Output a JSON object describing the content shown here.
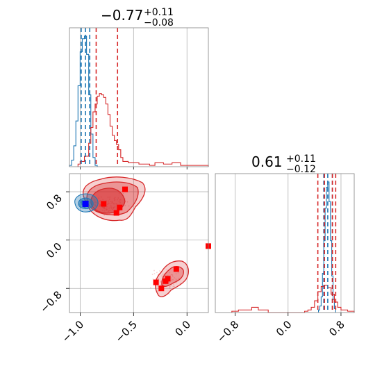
{
  "chart_data": [
    {
      "type": "histogram",
      "panel": "param1-marginal",
      "title": {
        "median": "−0.77",
        "plus": "+0.11",
        "minus": "−0.08"
      },
      "xlim": [
        -1.1,
        0.2
      ],
      "grid": true,
      "series": [
        {
          "name": "blue",
          "color": "#1f77b4",
          "quantiles": [
            -0.99,
            -0.95,
            -0.91
          ],
          "bins": [
            [
              -1.1,
              -1.08,
              0.01
            ],
            [
              -1.08,
              -1.06,
              0.05
            ],
            [
              -1.06,
              -1.04,
              0.16
            ],
            [
              -1.04,
              -1.02,
              0.35
            ],
            [
              -1.02,
              -1.0,
              0.62
            ],
            [
              -1.0,
              -0.98,
              0.88
            ],
            [
              -0.98,
              -0.96,
              0.98
            ],
            [
              -0.96,
              -0.94,
              1.0
            ],
            [
              -0.94,
              -0.92,
              0.86
            ],
            [
              -0.92,
              -0.9,
              0.55
            ],
            [
              -0.9,
              -0.88,
              0.25
            ],
            [
              -0.88,
              -0.86,
              0.07
            ],
            [
              -0.86,
              -0.84,
              0.01
            ]
          ]
        },
        {
          "name": "red",
          "color": "#d62728",
          "quantiles": [
            -0.85,
            -0.65
          ],
          "bins": [
            [
              -1.02,
              -1.0,
              0.02
            ],
            [
              -1.0,
              -0.96,
              0.04
            ],
            [
              -0.96,
              -0.92,
              0.08
            ],
            [
              -0.92,
              -0.9,
              0.18
            ],
            [
              -0.9,
              -0.88,
              0.3
            ],
            [
              -0.88,
              -0.86,
              0.42
            ],
            [
              -0.86,
              -0.84,
              0.48
            ],
            [
              -0.84,
              -0.82,
              0.54
            ],
            [
              -0.82,
              -0.8,
              0.56
            ],
            [
              -0.8,
              -0.78,
              0.55
            ],
            [
              -0.78,
              -0.76,
              0.53
            ],
            [
              -0.76,
              -0.74,
              0.48
            ],
            [
              -0.74,
              -0.72,
              0.4
            ],
            [
              -0.72,
              -0.7,
              0.31
            ],
            [
              -0.7,
              -0.68,
              0.24
            ],
            [
              -0.68,
              -0.66,
              0.2
            ],
            [
              -0.66,
              -0.64,
              0.17
            ],
            [
              -0.64,
              -0.62,
              0.13
            ],
            [
              -0.62,
              -0.6,
              0.07
            ],
            [
              -0.6,
              -0.55,
              0.04
            ],
            [
              -0.55,
              -0.45,
              0.03
            ],
            [
              -0.45,
              -0.35,
              0.02
            ],
            [
              -0.35,
              -0.3,
              0.01
            ],
            [
              -0.3,
              -0.22,
              0.03
            ],
            [
              -0.22,
              -0.14,
              0.02
            ],
            [
              -0.14,
              -0.06,
              0.03
            ],
            [
              -0.06,
              0.0,
              0.01
            ],
            [
              0.0,
              0.2,
              0.01
            ]
          ]
        }
      ]
    },
    {
      "type": "histogram",
      "panel": "param2-marginal",
      "title": {
        "median": "0.61",
        "plus": "+0.11",
        "minus": "−0.12"
      },
      "xlim": [
        -1.1,
        1.0
      ],
      "xticks": [
        -0.8,
        0.0,
        0.8
      ],
      "xticklabels": [
        "−0.8",
        "0.0",
        "0.8"
      ],
      "grid": true,
      "series": [
        {
          "name": "blue",
          "color": "#1f77b4",
          "quantiles": [
            0.54,
            0.6,
            0.67
          ],
          "bins": [
            [
              0.46,
              0.48,
              0.02
            ],
            [
              0.48,
              0.5,
              0.05
            ],
            [
              0.5,
              0.52,
              0.12
            ],
            [
              0.52,
              0.54,
              0.3
            ],
            [
              0.54,
              0.56,
              0.55
            ],
            [
              0.56,
              0.58,
              0.8
            ],
            [
              0.58,
              0.6,
              0.96
            ],
            [
              0.6,
              0.62,
              1.0
            ],
            [
              0.62,
              0.64,
              0.85
            ],
            [
              0.64,
              0.66,
              0.55
            ],
            [
              0.66,
              0.68,
              0.28
            ],
            [
              0.68,
              0.7,
              0.1
            ],
            [
              0.7,
              0.72,
              0.03
            ]
          ]
        },
        {
          "name": "red",
          "color": "#d62728",
          "quantiles": [
            0.45,
            0.55,
            0.67,
            0.72
          ],
          "bins": [
            [
              -0.85,
              -0.75,
              0.01
            ],
            [
              -0.75,
              -0.65,
              0.02
            ],
            [
              -0.65,
              -0.55,
              0.02
            ],
            [
              -0.55,
              -0.45,
              0.04
            ],
            [
              -0.45,
              -0.3,
              0.02
            ],
            [
              -0.3,
              0.25,
              0.0
            ],
            [
              0.25,
              0.3,
              0.01
            ],
            [
              0.3,
              0.35,
              0.02
            ],
            [
              0.35,
              0.4,
              0.04
            ],
            [
              0.4,
              0.45,
              0.09
            ],
            [
              0.45,
              0.5,
              0.16
            ],
            [
              0.5,
              0.55,
              0.2
            ],
            [
              0.55,
              0.6,
              0.21
            ],
            [
              0.6,
              0.65,
              0.19
            ],
            [
              0.65,
              0.7,
              0.14
            ],
            [
              0.7,
              0.75,
              0.08
            ],
            [
              0.75,
              0.8,
              0.04
            ],
            [
              0.8,
              0.9,
              0.02
            ],
            [
              0.9,
              1.0,
              0.01
            ]
          ]
        }
      ]
    },
    {
      "type": "scatter",
      "panel": "joint",
      "xlim": [
        -1.1,
        0.2
      ],
      "ylim": [
        -1.2,
        1.1
      ],
      "xticks": [
        -1.0,
        -0.5,
        0.0
      ],
      "xticklabels": [
        "−1.0",
        "−0.5",
        "0.0"
      ],
      "yticks": [
        0.8,
        0.0,
        -0.8
      ],
      "yticklabels": [
        "0.8",
        "0.0",
        "−0.8"
      ],
      "grid": true,
      "red_markers": [
        [
          -0.58,
          0.84
        ],
        [
          -0.78,
          0.6
        ],
        [
          -0.63,
          0.54
        ],
        [
          -0.66,
          0.45
        ],
        [
          0.2,
          -0.1
        ],
        [
          -0.1,
          -0.48
        ],
        [
          -0.18,
          -0.64
        ],
        [
          -0.2,
          -0.68
        ],
        [
          -0.29,
          -0.7
        ],
        [
          -0.24,
          -0.8
        ]
      ],
      "blue_markers": [
        [
          -0.95,
          0.6
        ]
      ],
      "contours": {
        "red_cluster_upper": {
          "color": "#d62728"
        },
        "red_cluster_lower": {
          "color": "#d62728"
        },
        "blue_cluster": {
          "color": "#1f77b4"
        }
      }
    }
  ],
  "colors": {
    "blue": "#1f77b4",
    "red": "#d62728",
    "grid": "#b0b0b0",
    "frame": "#808080"
  }
}
